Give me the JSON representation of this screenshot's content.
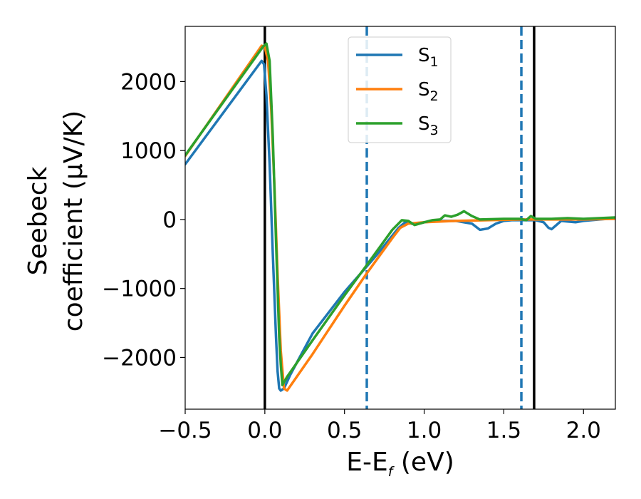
{
  "chart_data": {
    "type": "line",
    "title": "",
    "xlabel": "E-E",
    "xlabel_sub": "f",
    "xlabel_unit": " (eV)",
    "ylabel_line1": "Seebeck",
    "ylabel_line2": "coefficient  (μV/K)",
    "xlim": [
      -0.5,
      2.2
    ],
    "ylim": [
      -2750,
      2800
    ],
    "xticks": [
      -0.5,
      0.0,
      0.5,
      1.0,
      1.5,
      2.0
    ],
    "xtick_labels": [
      "−0.5",
      "0.0",
      "0.5",
      "1.0",
      "1.5",
      "2.0"
    ],
    "yticks": [
      -2000,
      -1000,
      0,
      1000,
      2000
    ],
    "ytick_labels": [
      "−2000",
      "−1000",
      "0",
      "1000",
      "2000"
    ],
    "grid": false,
    "legend_position": "top-center",
    "vlines_solid": [
      0.0,
      1.69
    ],
    "vlines_dashed": [
      0.64,
      1.61
    ],
    "series": [
      {
        "name": "S",
        "sub": "1",
        "color": "#1f77b4",
        "x": [
          -0.5,
          -0.02,
          -0.005,
          0.01,
          0.03,
          0.05,
          0.07,
          0.08,
          0.09,
          0.1,
          0.12,
          0.16,
          0.3,
          0.5,
          0.64,
          0.7,
          0.84,
          0.88,
          0.92,
          0.95,
          1.0,
          1.1,
          1.2,
          1.3,
          1.35,
          1.4,
          1.45,
          1.5,
          1.55,
          1.6,
          1.65,
          1.7,
          1.75,
          1.78,
          1.8,
          1.83,
          1.86,
          1.9,
          1.95,
          2.0,
          2.05,
          2.1,
          2.2
        ],
        "y": [
          800,
          2300,
          2250,
          1800,
          800,
          -500,
          -1700,
          -2200,
          -2450,
          -2480,
          -2450,
          -2250,
          -1650,
          -1050,
          -680,
          -520,
          -120,
          -40,
          -60,
          -70,
          -40,
          -20,
          -20,
          -60,
          -150,
          -130,
          -60,
          -20,
          -10,
          -10,
          -10,
          -10,
          -40,
          -120,
          -140,
          -80,
          -20,
          -30,
          -40,
          -20,
          -10,
          0,
          20
        ]
      },
      {
        "name": "S",
        "sub": "2",
        "color": "#ff7f0e",
        "x": [
          -0.5,
          -0.02,
          0.0,
          0.02,
          0.04,
          0.06,
          0.08,
          0.1,
          0.12,
          0.14,
          0.3,
          0.5,
          0.64,
          0.8,
          0.85,
          0.9,
          1.0,
          1.2,
          1.4,
          1.6,
          1.8,
          2.0,
          2.2
        ],
        "y": [
          920,
          2520,
          2500,
          2300,
          1600,
          500,
          -800,
          -1900,
          -2450,
          -2480,
          -1950,
          -1250,
          -780,
          -270,
          -120,
          -60,
          -40,
          -20,
          -10,
          0,
          0,
          0,
          10
        ]
      },
      {
        "name": "S",
        "sub": "3",
        "color": "#2ca02c",
        "x": [
          -0.5,
          -0.01,
          0.01,
          0.03,
          0.05,
          0.07,
          0.09,
          0.1,
          0.11,
          0.14,
          0.3,
          0.5,
          0.64,
          0.8,
          0.86,
          0.9,
          0.94,
          1.0,
          1.05,
          1.1,
          1.13,
          1.17,
          1.21,
          1.25,
          1.3,
          1.35,
          1.5,
          1.6,
          1.64,
          1.67,
          1.7,
          1.8,
          1.9,
          2.0,
          2.1,
          2.2
        ],
        "y": [
          930,
          2510,
          2550,
          2300,
          1200,
          -300,
          -1700,
          -2100,
          -2400,
          -2280,
          -1750,
          -1100,
          -660,
          -150,
          -10,
          -20,
          -80,
          -40,
          -10,
          0,
          60,
          40,
          70,
          120,
          50,
          0,
          10,
          10,
          -10,
          50,
          10,
          10,
          20,
          10,
          20,
          30
        ]
      }
    ]
  }
}
